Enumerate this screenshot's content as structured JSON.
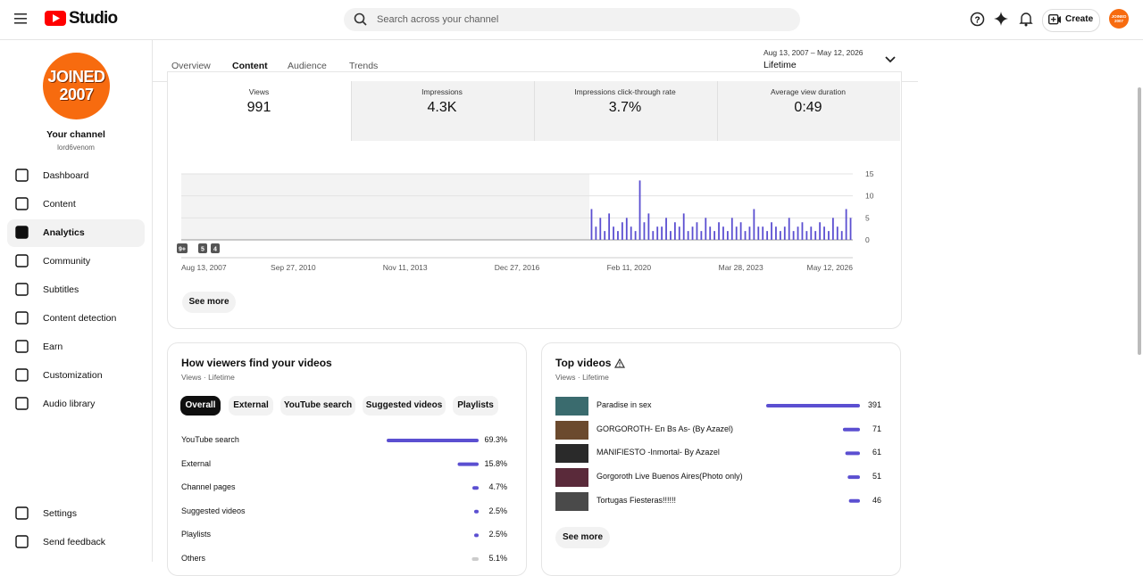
{
  "header": {
    "logo": "Studio",
    "search_placeholder": "Search across your channel",
    "create": "Create"
  },
  "avatar": {
    "line1": "JOINED",
    "line2": "2007"
  },
  "channel": {
    "title": "Your channel",
    "handle": "lord6venom"
  },
  "nav": [
    "Dashboard",
    "Content",
    "Analytics",
    "Community",
    "Subtitles",
    "Content detection",
    "Earn",
    "Customization",
    "Audio library"
  ],
  "nav_bottom": [
    "Settings",
    "Send feedback"
  ],
  "tabs": [
    "Overview",
    "Content",
    "Audience",
    "Trends"
  ],
  "date_range": {
    "range": "Aug 13, 2007 – May 12, 2026",
    "label": "Lifetime"
  },
  "metrics": [
    {
      "label": "Views",
      "value": "991"
    },
    {
      "label": "Impressions",
      "value": "4.3K"
    },
    {
      "label": "Impressions click-through rate",
      "value": "3.7%"
    },
    {
      "label": "Average view duration",
      "value": "0:49"
    }
  ],
  "chart_data": {
    "type": "bar",
    "color": "#5b4fd1",
    "categories": [
      null,
      null,
      null,
      null,
      null,
      null,
      null,
      null,
      null,
      null,
      null,
      null,
      null,
      null,
      null,
      null,
      null,
      null,
      null,
      null,
      null,
      null,
      null,
      null,
      null,
      null,
      null,
      null,
      null,
      null,
      null,
      null,
      null,
      null,
      null,
      null,
      null,
      null,
      null,
      null,
      null,
      null,
      null,
      null,
      null,
      null,
      null,
      null,
      null,
      null,
      null,
      null,
      null,
      null,
      null,
      null,
      null,
      null,
      null,
      null
    ],
    "values": [
      7,
      3,
      5,
      2,
      6,
      3,
      2,
      4,
      5,
      3,
      2,
      13.5,
      4,
      6,
      2,
      3,
      3,
      5,
      2,
      4,
      3,
      6,
      2,
      3,
      4,
      2,
      5,
      3,
      2,
      4,
      3,
      2,
      5,
      3,
      4,
      2,
      3,
      7,
      3,
      3,
      2,
      4,
      3,
      2,
      3,
      5,
      2,
      3,
      4,
      2,
      3,
      2,
      4,
      3,
      2,
      5,
      3,
      2,
      7,
      5
    ],
    "ylim": [
      0,
      15
    ],
    "yticks": [
      0,
      5,
      10,
      15
    ],
    "grid": true,
    "x_axis_labels": [
      "Aug 13, 2007",
      "Sep 27, 2010",
      "Nov 11, 2013",
      "Dec 27, 2016",
      "Feb 11, 2020",
      "Mar 28, 2023",
      "May 12, 2026"
    ],
    "badges": [
      "9+",
      "5",
      "4"
    ]
  },
  "see_more": "See more",
  "traffic": {
    "title": "How viewers find your videos",
    "subtitle": "Views · Lifetime",
    "filters": [
      "Overall",
      "External",
      "YouTube search",
      "Suggested videos",
      "Playlists"
    ],
    "rows": [
      {
        "name": "YouTube search",
        "value": 69.3,
        "value_label": "69.3%",
        "color": "#5b4fd1"
      },
      {
        "name": "External",
        "value": 15.8,
        "value_label": "15.8%",
        "color": "#5b4fd1"
      },
      {
        "name": "Channel pages",
        "value": 4.7,
        "value_label": "4.7%",
        "color": "#5b4fd1"
      },
      {
        "name": "Suggested videos",
        "value": 2.5,
        "value_label": "2.5%",
        "color": "#5b4fd1"
      },
      {
        "name": "Playlists",
        "value": 2.5,
        "value_label": "2.5%",
        "color": "#5b4fd1"
      },
      {
        "name": "Others",
        "value": 5.1,
        "value_label": "5.1%",
        "color": "#cccccc"
      }
    ]
  },
  "top_videos": {
    "title": "Top videos",
    "subtitle": "Views · Lifetime",
    "color": "#5b4fd1",
    "rows": [
      {
        "title": "Paradise in sex",
        "views": 391
      },
      {
        "title": "GORGOROTH- En Bs As- (By Azazel)",
        "views": 71
      },
      {
        "title": "MANIFIESTO -Inmortal- By Azazel",
        "views": 61
      },
      {
        "title": "Gorgoroth Live Buenos Aires(Photo only)",
        "views": 51
      },
      {
        "title": "Tortugas Fiesteras!!!!!!",
        "views": 46
      }
    ],
    "see_more": "See more"
  }
}
